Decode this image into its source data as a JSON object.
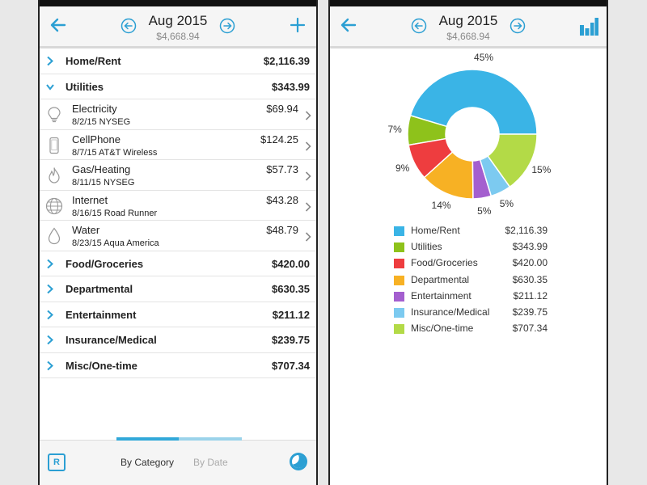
{
  "header": {
    "title": "Aug 2015",
    "subtitle": "$4,668.94"
  },
  "categories": [
    {
      "name": "Home/Rent",
      "amount": "$2,116.39"
    },
    {
      "name": "Utilities",
      "amount": "$343.99"
    },
    {
      "name": "Food/Groceries",
      "amount": "$420.00"
    },
    {
      "name": "Departmental",
      "amount": "$630.35"
    },
    {
      "name": "Entertainment",
      "amount": "$211.12"
    },
    {
      "name": "Insurance/Medical",
      "amount": "$239.75"
    },
    {
      "name": "Misc/One-time",
      "amount": "$707.34"
    }
  ],
  "utilities_items": [
    {
      "name": "Electricity",
      "detail": "8/2/15 NYSEG",
      "amount": "$69.94",
      "icon": "bulb-icon"
    },
    {
      "name": "CellPhone",
      "detail": "8/7/15 AT&T Wireless",
      "amount": "$124.25",
      "icon": "phone-icon"
    },
    {
      "name": "Gas/Heating",
      "detail": "8/11/15 NYSEG",
      "amount": "$57.73",
      "icon": "flame-icon"
    },
    {
      "name": "Internet",
      "detail": "8/16/15 Road Runner",
      "amount": "$43.28",
      "icon": "globe-icon"
    },
    {
      "name": "Water",
      "detail": "8/23/15 Aqua America",
      "amount": "$48.79",
      "icon": "droplet-icon"
    }
  ],
  "bottom_bar": {
    "r_label": "R",
    "tab_category": "By Category",
    "tab_date": "By Date"
  },
  "colors": {
    "accent": "#2b9fd3"
  },
  "chart_data": {
    "type": "pie",
    "categories": [
      "Home/Rent",
      "Utilities",
      "Food/Groceries",
      "Departmental",
      "Entertainment",
      "Insurance/Medical",
      "Misc/One-time"
    ],
    "values": [
      2116.39,
      343.99,
      420.0,
      630.35,
      211.12,
      239.75,
      707.34
    ],
    "value_labels": [
      "$2,116.39",
      "$343.99",
      "$420.00",
      "$630.35",
      "$211.12",
      "$239.75",
      "$707.34"
    ],
    "percent_labels": [
      "45%",
      "7%",
      "9%",
      "14%",
      "5%",
      "5%",
      "15%"
    ],
    "colors": [
      "#3ab4e6",
      "#8ec21b",
      "#ee3d3f",
      "#f7b124",
      "#a45fcf",
      "#7ccaf0",
      "#b3da47"
    ],
    "donut": true,
    "legend": "bottom"
  }
}
